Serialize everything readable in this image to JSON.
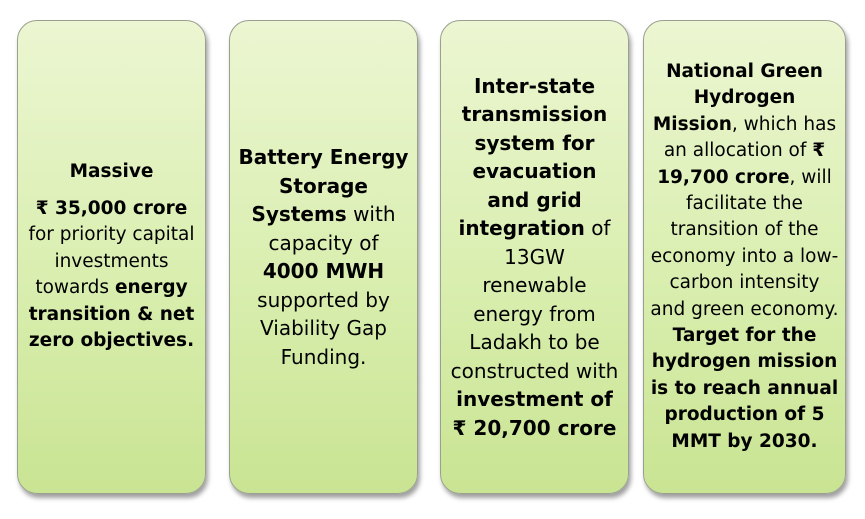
{
  "cards": [
    {
      "heading": "Massive",
      "amount": "₹ 35,000 crore",
      "text_1": "for priority capital investments towards",
      "bold_1": "energy transition & net zero objectives."
    },
    {
      "bold_1": "Battery Energy Storage Systems",
      "text_1": "with capacity of",
      "bold_2": "4000 MWH",
      "text_2": "supported by Viability Gap Funding."
    },
    {
      "bold_1": "Inter-state transmission system for evacuation and grid integration",
      "text_1": "of 13GW renewable energy from Ladakh to be constructed with",
      "bold_2": "investment of ₹ 20,700 crore"
    },
    {
      "bold_1": "National Green Hydrogen Mission",
      "text_1": ", which has an allocation of",
      "bold_2": "₹ 19,700 crore",
      "text_2": ", will facilitate the transition of the economy into a low-carbon intensity and green economy.",
      "bold_3": "Target for the hydrogen mission is to reach annual production of 5 MMT by 2030."
    }
  ]
}
